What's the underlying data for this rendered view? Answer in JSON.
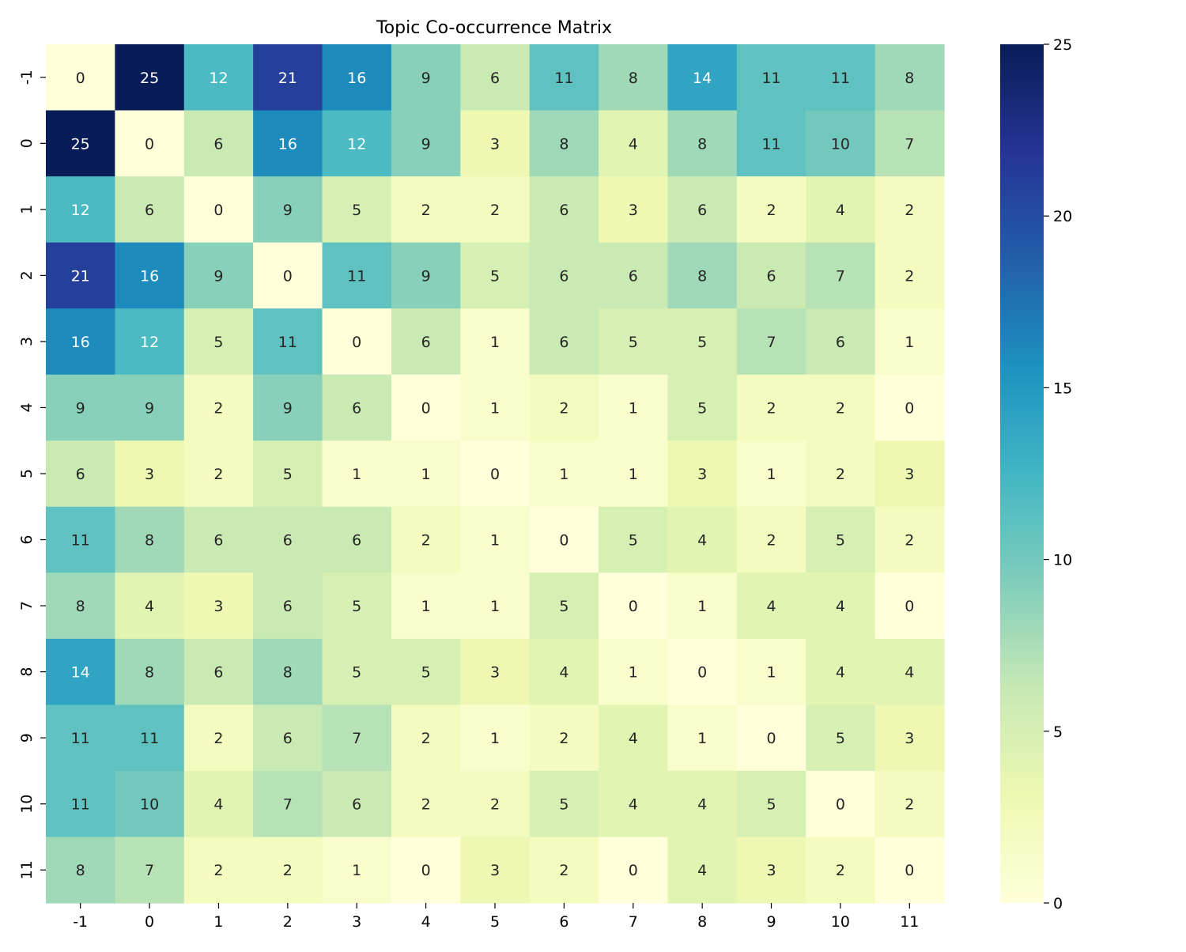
{
  "chart_data": {
    "type": "heatmap",
    "title": "Topic Co-occurrence Matrix",
    "xlabel": "",
    "ylabel": "",
    "x_categories": [
      "-1",
      "0",
      "1",
      "2",
      "3",
      "4",
      "5",
      "6",
      "7",
      "8",
      "9",
      "10",
      "11"
    ],
    "y_categories": [
      "-1",
      "0",
      "1",
      "2",
      "3",
      "4",
      "5",
      "6",
      "7",
      "8",
      "9",
      "10",
      "11"
    ],
    "values": [
      [
        0,
        25,
        12,
        21,
        16,
        9,
        6,
        11,
        8,
        14,
        11,
        11,
        8
      ],
      [
        25,
        0,
        6,
        16,
        12,
        9,
        3,
        8,
        4,
        8,
        11,
        10,
        7
      ],
      [
        12,
        6,
        0,
        9,
        5,
        2,
        2,
        6,
        3,
        6,
        2,
        4,
        2
      ],
      [
        21,
        16,
        9,
        0,
        11,
        9,
        5,
        6,
        6,
        8,
        6,
        7,
        2
      ],
      [
        16,
        12,
        5,
        11,
        0,
        6,
        1,
        6,
        5,
        5,
        7,
        6,
        1
      ],
      [
        9,
        9,
        2,
        9,
        6,
        0,
        1,
        2,
        1,
        5,
        2,
        2,
        0
      ],
      [
        6,
        3,
        2,
        5,
        1,
        1,
        0,
        1,
        1,
        3,
        1,
        2,
        3
      ],
      [
        11,
        8,
        6,
        6,
        6,
        2,
        1,
        0,
        5,
        4,
        2,
        5,
        2
      ],
      [
        8,
        4,
        3,
        6,
        5,
        1,
        1,
        5,
        0,
        1,
        4,
        4,
        0
      ],
      [
        14,
        8,
        6,
        8,
        5,
        5,
        3,
        4,
        1,
        0,
        1,
        4,
        4
      ],
      [
        11,
        11,
        2,
        6,
        7,
        2,
        1,
        2,
        4,
        1,
        0,
        5,
        3
      ],
      [
        11,
        10,
        4,
        7,
        6,
        2,
        2,
        5,
        4,
        4,
        5,
        0,
        2
      ],
      [
        8,
        7,
        2,
        2,
        1,
        0,
        3,
        2,
        0,
        4,
        3,
        2,
        0
      ]
    ],
    "colorbar": {
      "min": 0,
      "max": 25,
      "ticks": [
        0,
        5,
        10,
        15,
        20,
        25
      ],
      "colormap": "YlGnBu"
    },
    "annotate": true
  }
}
